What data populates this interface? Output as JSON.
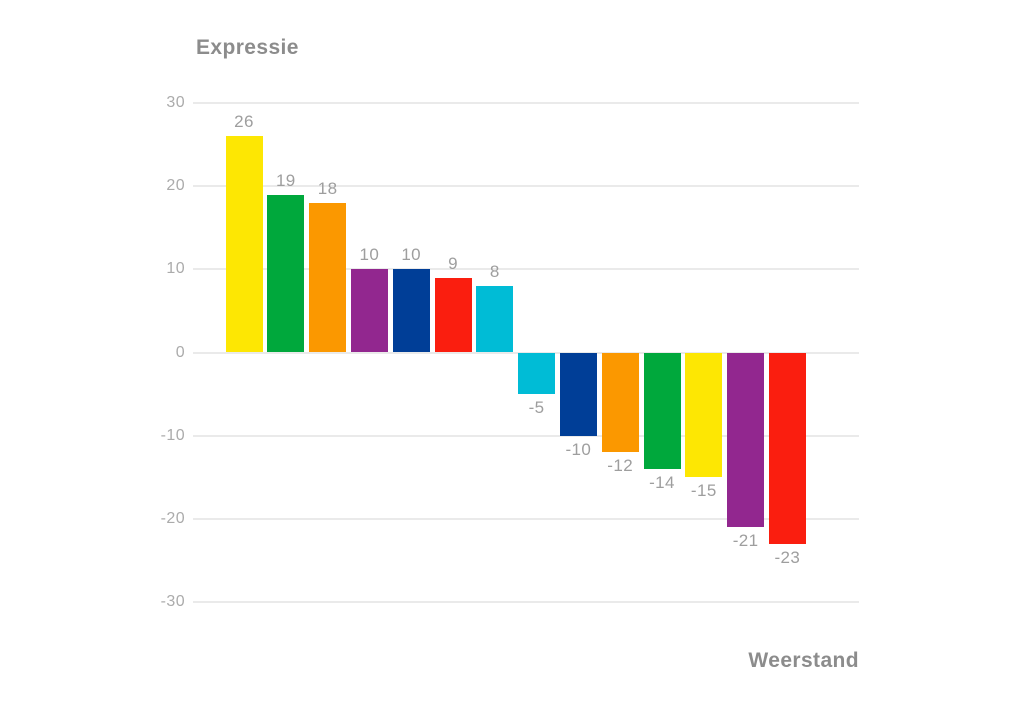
{
  "chart_data": {
    "type": "bar",
    "title": "",
    "ylabel": "Expressie",
    "xlabel": "Weerstand",
    "values": [
      26,
      19,
      18,
      10,
      10,
      9,
      8,
      -5,
      -10,
      -12,
      -14,
      -15,
      -21,
      -23
    ],
    "bar_labels": [
      "26",
      "19",
      "18",
      "10",
      "10",
      "9",
      "8",
      "-5",
      "-10",
      "-12",
      "-14",
      "-15",
      "-21",
      "-23"
    ],
    "bar_colors": [
      "#FDE703",
      "#00A83C",
      "#FB9800",
      "#92278F",
      "#003E97",
      "#FA1E0F",
      "#00BCD6",
      "#00BCD6",
      "#003E97",
      "#FB9800",
      "#00A83C",
      "#FDE703",
      "#92278F",
      "#FA1E0F"
    ],
    "y_ticks": [
      30,
      20,
      10,
      0,
      -10,
      -20,
      -30
    ],
    "ylim": [
      -30,
      30
    ],
    "grid": true,
    "legend": "none",
    "style_colors": {
      "background": "#FFFFFF",
      "gridline": "#EAEAEA",
      "tick_label": "#ABABAB",
      "value_label": "#9E9E9E",
      "axis_title": "#8C8C8C"
    }
  }
}
